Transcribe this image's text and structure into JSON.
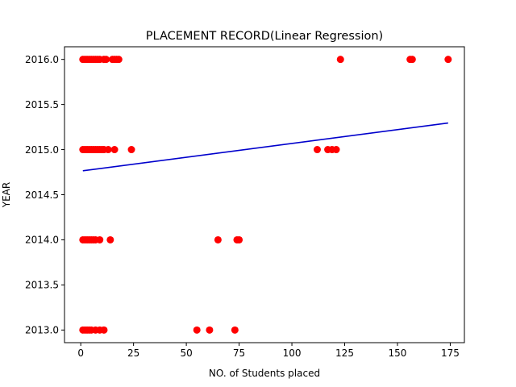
{
  "chart_data": {
    "type": "scatter",
    "title": "PLACEMENT RECORD(Linear Regression)",
    "xlabel": "NO. of Students placed",
    "ylabel": "YEAR",
    "xlim": [
      -7.7,
      181.7
    ],
    "ylim": [
      2012.86,
      2016.14
    ],
    "xticks": [
      0,
      25,
      50,
      75,
      100,
      125,
      150,
      175
    ],
    "yticks": [
      2013.0,
      2013.5,
      2014.0,
      2014.5,
      2015.0,
      2015.5,
      2016.0
    ],
    "ytick_labels": [
      "2013.0",
      "2013.5",
      "2014.0",
      "2014.5",
      "2015.0",
      "2015.5",
      "2016.0"
    ],
    "grid": false,
    "legend": "none",
    "series": [
      {
        "kind": "points",
        "color": "#ff0000",
        "points": [
          [
            1,
            2016
          ],
          [
            2,
            2016
          ],
          [
            3,
            2016
          ],
          [
            4,
            2016
          ],
          [
            5,
            2016
          ],
          [
            6,
            2016
          ],
          [
            7,
            2016
          ],
          [
            8,
            2016
          ],
          [
            9,
            2016
          ],
          [
            11,
            2016
          ],
          [
            12,
            2016
          ],
          [
            15,
            2016
          ],
          [
            16,
            2016
          ],
          [
            17,
            2016
          ],
          [
            18,
            2016
          ],
          [
            123,
            2016
          ],
          [
            156,
            2016
          ],
          [
            157,
            2016
          ],
          [
            174,
            2016
          ],
          [
            1,
            2015
          ],
          [
            2,
            2015
          ],
          [
            3,
            2015
          ],
          [
            4,
            2015
          ],
          [
            5,
            2015
          ],
          [
            6,
            2015
          ],
          [
            7,
            2015
          ],
          [
            8,
            2015
          ],
          [
            9,
            2015
          ],
          [
            10,
            2015
          ],
          [
            11,
            2015
          ],
          [
            13,
            2015
          ],
          [
            16,
            2015
          ],
          [
            24,
            2015
          ],
          [
            112,
            2015
          ],
          [
            117,
            2015
          ],
          [
            119,
            2015
          ],
          [
            121,
            2015
          ],
          [
            1,
            2014
          ],
          [
            2,
            2014
          ],
          [
            3,
            2014
          ],
          [
            4,
            2014
          ],
          [
            5,
            2014
          ],
          [
            6,
            2014
          ],
          [
            7,
            2014
          ],
          [
            9,
            2014
          ],
          [
            14,
            2014
          ],
          [
            65,
            2014
          ],
          [
            74,
            2014
          ],
          [
            75,
            2014
          ],
          [
            1,
            2013
          ],
          [
            2,
            2013
          ],
          [
            3,
            2013
          ],
          [
            4,
            2013
          ],
          [
            5,
            2013
          ],
          [
            7,
            2013
          ],
          [
            9,
            2013
          ],
          [
            11,
            2013
          ],
          [
            55,
            2013
          ],
          [
            61,
            2013
          ],
          [
            73,
            2013
          ]
        ]
      },
      {
        "kind": "line",
        "color": "#0000cc",
        "points": [
          [
            1,
            2014.765
          ],
          [
            174,
            2015.295
          ]
        ]
      }
    ]
  }
}
